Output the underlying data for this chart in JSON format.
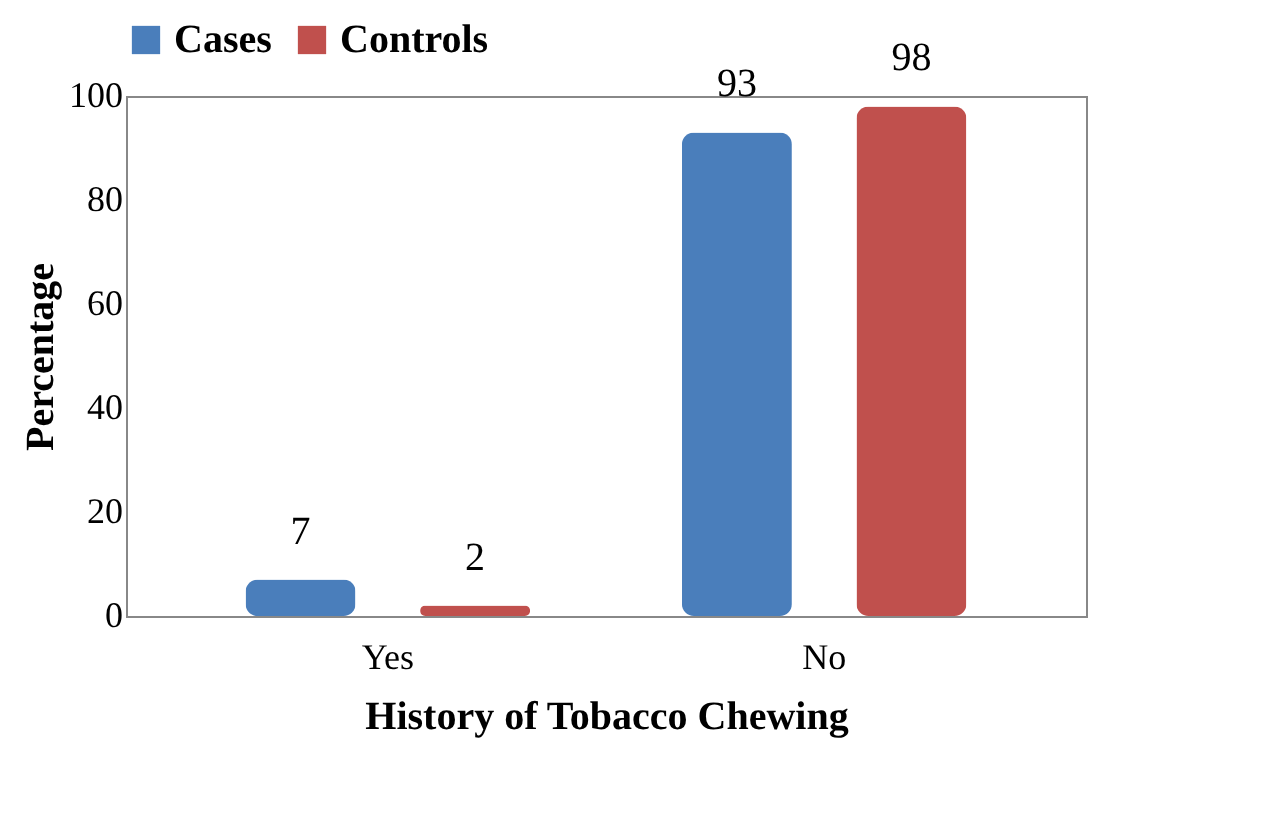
{
  "chart_data": {
    "type": "bar",
    "xlabel": "History of Tobacco Chewing",
    "ylabel": "Percentage",
    "categories": [
      "Yes",
      "No"
    ],
    "series": [
      {
        "name": "Cases",
        "color": "#4a7ebb",
        "values": [
          7,
          93
        ]
      },
      {
        "name": "Controls",
        "color": "#c0504d",
        "values": [
          2,
          98
        ]
      }
    ],
    "ylim": [
      0,
      100
    ],
    "yticks": [
      0,
      20,
      40,
      60,
      80,
      100
    ],
    "grid": false,
    "legend": "top",
    "data_labels": true
  }
}
